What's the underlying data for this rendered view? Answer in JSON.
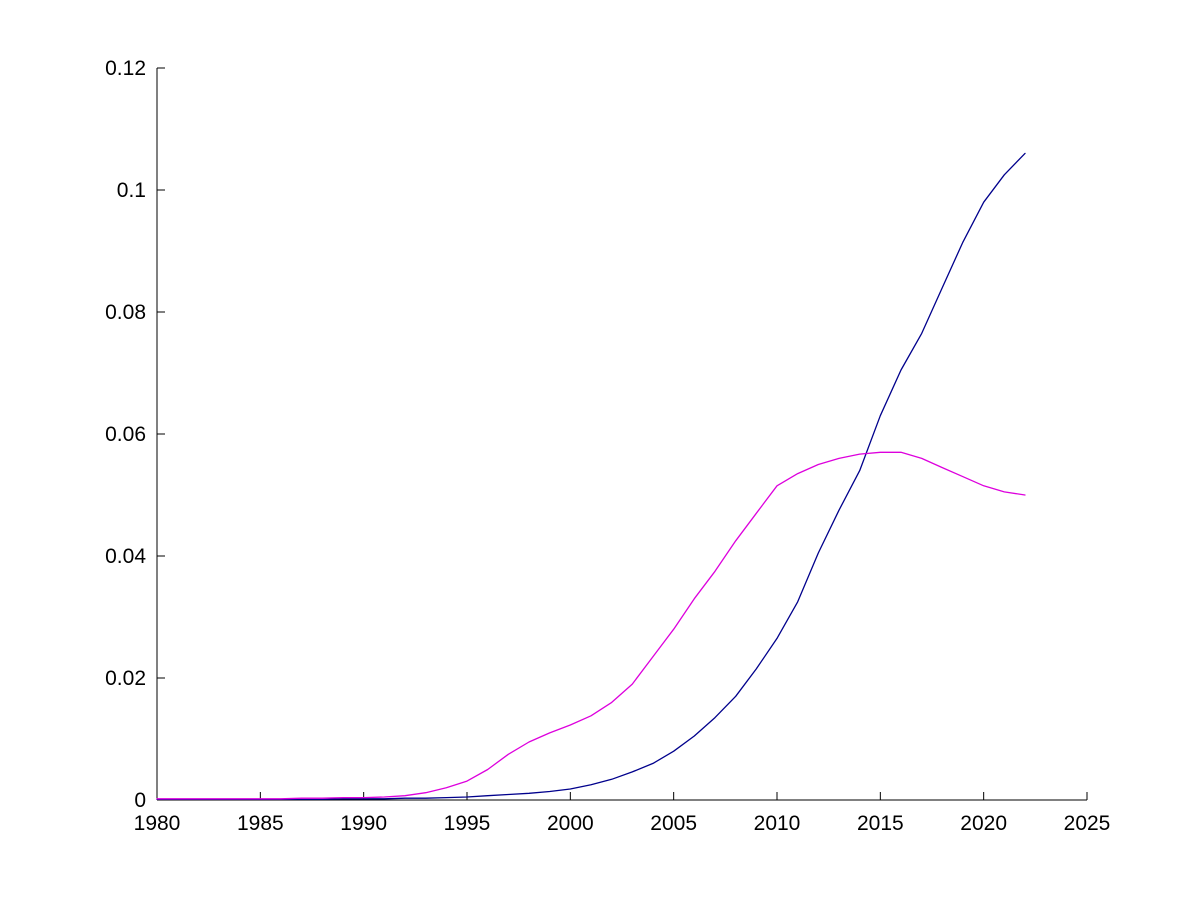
{
  "figure": {
    "background": "#ffffff"
  },
  "chart_data": {
    "type": "line",
    "title": "",
    "xlabel": "",
    "ylabel": "",
    "grid": false,
    "legend_position": "none",
    "axis_color": "#000000",
    "xlim": [
      1980,
      2025
    ],
    "ylim": [
      0,
      0.12
    ],
    "xticks": [
      1980,
      1985,
      1990,
      1995,
      2000,
      2005,
      2010,
      2015,
      2020,
      2025
    ],
    "xtick_labels": [
      "1980",
      "1985",
      "1990",
      "1995",
      "2000",
      "2005",
      "2010",
      "2015",
      "2020",
      "2025"
    ],
    "yticks": [
      0,
      0.02,
      0.04,
      0.06,
      0.08,
      0.1,
      0.12
    ],
    "ytick_labels": [
      "0",
      "0.02",
      "0.04",
      "0.06",
      "0.08",
      "0.1",
      "0.12"
    ],
    "x": [
      1980,
      1981,
      1982,
      1983,
      1984,
      1985,
      1986,
      1987,
      1988,
      1989,
      1990,
      1991,
      1992,
      1993,
      1994,
      1995,
      1996,
      1997,
      1998,
      1999,
      2000,
      2001,
      2002,
      2003,
      2004,
      2005,
      2006,
      2007,
      2008,
      2009,
      2010,
      2011,
      2012,
      2013,
      2014,
      2015,
      2016,
      2017,
      2018,
      2019,
      2020,
      2021,
      2022
    ],
    "series": [
      {
        "name": "dark-blue-line",
        "color": "#00008C",
        "values": [
          0.0001,
          0.0001,
          0.0001,
          0.0001,
          0.0001,
          0.0001,
          0.0001,
          0.0001,
          0.0001,
          0.0002,
          0.0002,
          0.0002,
          0.0003,
          0.0003,
          0.0004,
          0.0005,
          0.0007,
          0.0009,
          0.0011,
          0.0014,
          0.0018,
          0.0025,
          0.0034,
          0.0046,
          0.006,
          0.008,
          0.0105,
          0.0135,
          0.017,
          0.0215,
          0.0265,
          0.0325,
          0.0405,
          0.0475,
          0.054,
          0.063,
          0.0705,
          0.0765,
          0.084,
          0.0915,
          0.098,
          0.1025,
          0.106
        ]
      },
      {
        "name": "magenta-line",
        "color": "#DD00DD",
        "values": [
          0.0002,
          0.0002,
          0.0002,
          0.0002,
          0.0002,
          0.0002,
          0.0002,
          0.0003,
          0.0003,
          0.0004,
          0.0004,
          0.0005,
          0.0007,
          0.0012,
          0.002,
          0.0031,
          0.005,
          0.0075,
          0.0095,
          0.011,
          0.0123,
          0.0138,
          0.016,
          0.019,
          0.0235,
          0.028,
          0.033,
          0.0375,
          0.0425,
          0.047,
          0.0515,
          0.0535,
          0.055,
          0.056,
          0.0567,
          0.057,
          0.057,
          0.056,
          0.0545,
          0.053,
          0.0515,
          0.0505,
          0.05
        ]
      }
    ]
  }
}
